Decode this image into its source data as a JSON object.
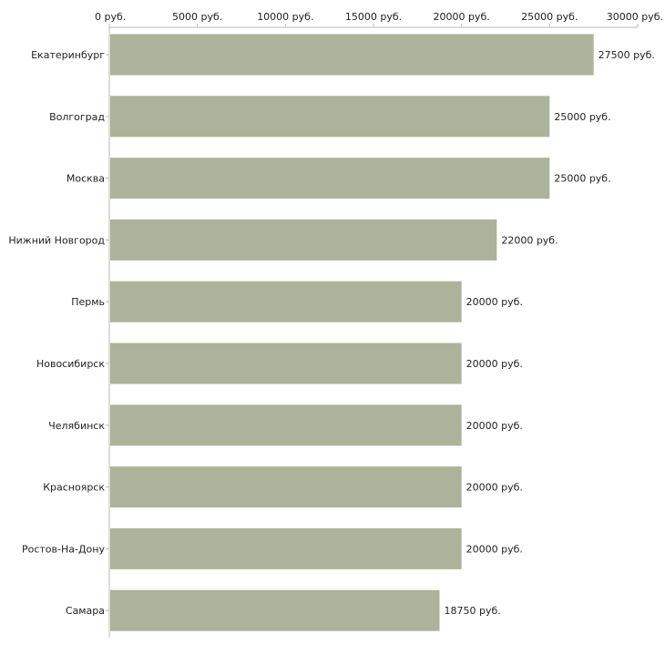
{
  "chart_data": {
    "type": "bar",
    "orientation": "horizontal",
    "title": "",
    "xlabel": "",
    "ylabel": "",
    "categories": [
      "Екатеринбург",
      "Волгоград",
      "Москва",
      "Нижний Новгород",
      "Пермь",
      "Новосибирск",
      "Челябинск",
      "Красноярск",
      "Ростов-На-Дону",
      "Самара"
    ],
    "values": [
      27500,
      25000,
      25000,
      22000,
      20000,
      20000,
      20000,
      20000,
      20000,
      18750
    ],
    "value_labels": [
      "27500 руб.",
      "25000 руб.",
      "25000 руб.",
      "22000 руб.",
      "20000 руб.",
      "20000 руб.",
      "20000 руб.",
      "20000 руб.",
      "20000 руб.",
      "18750 руб."
    ],
    "xlim": [
      0,
      30000
    ],
    "ticks": [
      0,
      5000,
      10000,
      15000,
      20000,
      25000,
      30000
    ],
    "tick_labels": [
      "0 руб.",
      "5000 руб.",
      "10000 руб.",
      "15000 руб.",
      "20000 руб.",
      "25000 руб.",
      "30000 руб."
    ],
    "axis_position": "top",
    "grid": false,
    "legend": "none",
    "bar_color": "#acb39a",
    "axis_color": "#bbbbbb"
  }
}
